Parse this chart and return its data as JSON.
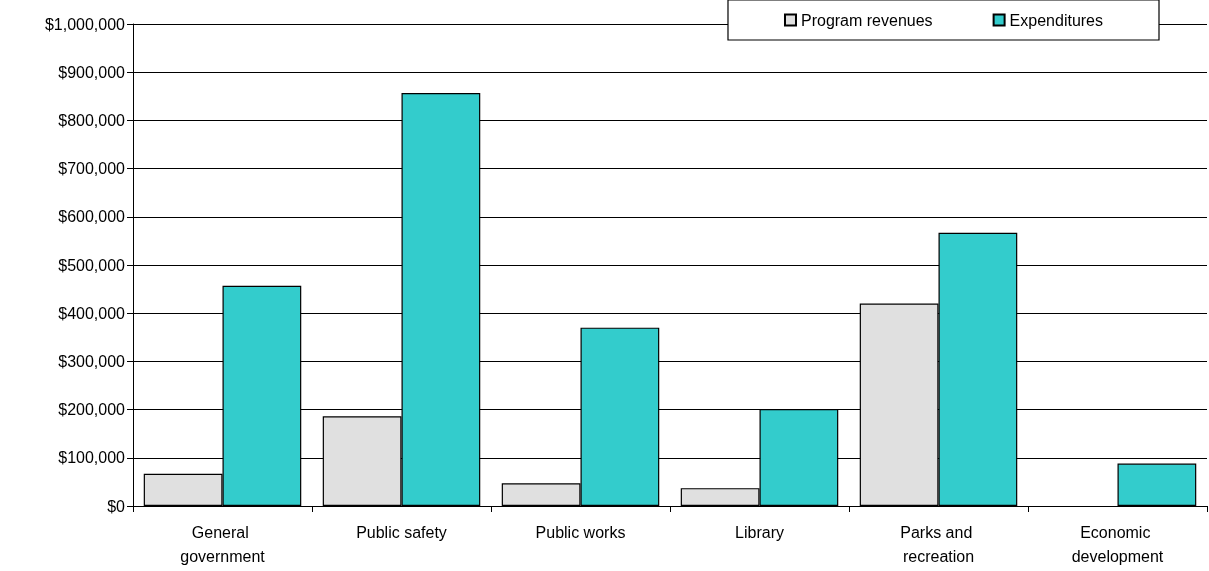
{
  "chart_data": {
    "type": "bar",
    "categories": [
      "General government",
      "Public safety",
      "Public works",
      "Library",
      "Parks and recreation",
      "Economic development"
    ],
    "series": [
      {
        "name": "Program revenues",
        "color": "#e0e0e0",
        "values": [
          67000,
          186000,
          47000,
          37000,
          420000,
          null
        ]
      },
      {
        "name": "Expenditures",
        "color": "#33cccc",
        "values": [
          457000,
          857000,
          370000,
          201000,
          567000,
          88000
        ]
      }
    ],
    "ylim": [
      0,
      1000000
    ],
    "yticks": [
      {
        "value": 0,
        "label": "$0"
      },
      {
        "value": 100000,
        "label": "$100,000"
      },
      {
        "value": 200000,
        "label": "$200,000"
      },
      {
        "value": 300000,
        "label": "$300,000"
      },
      {
        "value": 400000,
        "label": "$400,000"
      },
      {
        "value": 500000,
        "label": "$500,000"
      },
      {
        "value": 600000,
        "label": "$600,000"
      },
      {
        "value": 700000,
        "label": "$700,000"
      },
      {
        "value": 800000,
        "label": "$800,000"
      },
      {
        "value": 900000,
        "label": "$900,000"
      },
      {
        "value": 1000000,
        "label": "$1,000,000"
      }
    ],
    "grid": "y",
    "legend": "top right"
  }
}
